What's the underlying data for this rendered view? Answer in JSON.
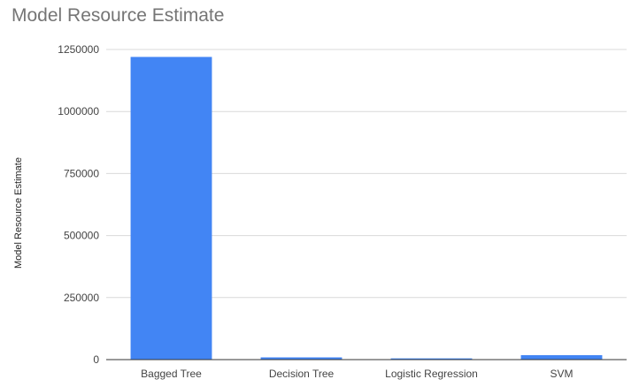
{
  "chart_data": {
    "type": "bar",
    "title": "Model Resource Estimate",
    "xlabel": "",
    "ylabel": "Model Resource Estimate",
    "categories": [
      "Bagged Tree",
      "Decision Tree",
      "Logistic Regression",
      "SVM"
    ],
    "values": [
      1220000,
      9000,
      5000,
      18000
    ],
    "ylim": [
      0,
      1250000
    ],
    "yticks": [
      0,
      250000,
      500000,
      750000,
      1000000,
      1250000
    ],
    "ytick_labels": [
      "0",
      "250000",
      "500000",
      "750000",
      "1000000",
      "1250000"
    ],
    "grid": true,
    "bar_color": "#4285f4",
    "gridline_color": "#d9d9d9",
    "baseline_color": "#333333"
  }
}
